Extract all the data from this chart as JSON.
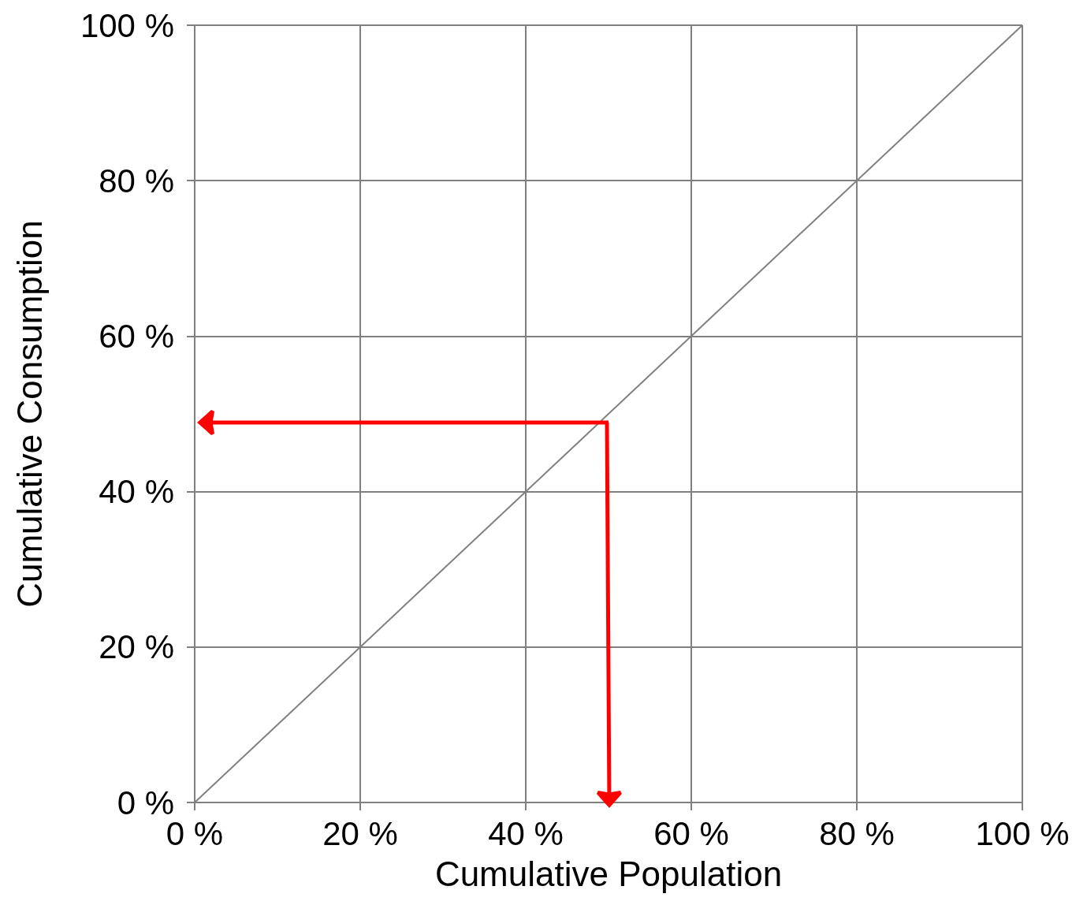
{
  "chart_data": {
    "type": "line",
    "xlabel": "Cumulative Population",
    "ylabel": "Cumulative Consumption",
    "xlim": [
      0,
      100
    ],
    "xticks": [
      {
        "value": 0,
        "label": "0 %"
      },
      {
        "value": 20,
        "label": "20 %"
      },
      {
        "value": 40,
        "label": "40 %"
      },
      {
        "value": 60,
        "label": "60 %"
      },
      {
        "value": 80,
        "label": "80 %"
      },
      {
        "value": 100,
        "label": "100 %"
      }
    ],
    "ylim": [
      0,
      100
    ],
    "yticks": [
      {
        "value": 0,
        "label": "0 %"
      },
      {
        "value": 20,
        "label": "20 %"
      },
      {
        "value": 40,
        "label": "40 %"
      },
      {
        "value": 60,
        "label": "60 %"
      },
      {
        "value": 80,
        "label": "80 %"
      },
      {
        "value": 100,
        "label": "100 %"
      }
    ],
    "grid": true,
    "series": [
      {
        "color": "#808080",
        "x": [
          0,
          100
        ],
        "values": [
          0,
          100
        ],
        "marker": "none"
      }
    ]
  }
}
